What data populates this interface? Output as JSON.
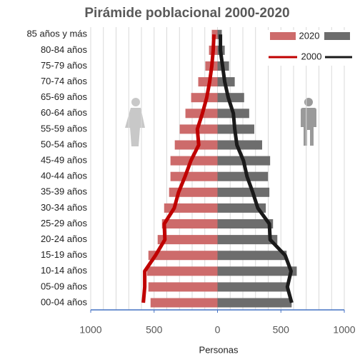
{
  "chart_data": {
    "type": "pyramid",
    "title": "Pirámide poblacional 2000-2020",
    "x_label": "Personas",
    "categories": [
      "00-04 años",
      "05-09 años",
      "10-14 años",
      "15-19 años",
      "20-24 años",
      "25-29 años",
      "30-34 años",
      "35-39 años",
      "40-44 años",
      "45-49 años",
      "50-54 años",
      "55-59 años",
      "60-64 años",
      "65-69 años",
      "70-74 años",
      "75-79 años",
      "80-84 años",
      "85 años y más"
    ],
    "series": [
      {
        "name": "2020",
        "kind": "bar",
        "color": "#cd6b6b",
        "values": [
          -528,
          -545,
          -556,
          -545,
          -472,
          -438,
          -421,
          -382,
          -371,
          -371,
          -337,
          -298,
          -253,
          -208,
          -152,
          -96,
          -67,
          -45
        ]
      },
      {
        "name": "2020",
        "kind": "bar",
        "color": "#6d6d6d",
        "values": [
          585,
          551,
          625,
          545,
          472,
          438,
          381,
          409,
          398,
          415,
          352,
          290,
          250,
          210,
          136,
          91,
          57,
          34
        ]
      },
      {
        "name": "2000",
        "kind": "line",
        "color": "#c00000",
        "values": [
          -585,
          -574,
          -574,
          -489,
          -415,
          -420,
          -341,
          -307,
          -256,
          -210,
          -148,
          -159,
          -119,
          -85,
          -62,
          -45,
          -34,
          -28
        ]
      },
      {
        "name": "2000",
        "kind": "line",
        "color": "#1a1a1a",
        "values": [
          585,
          551,
          580,
          534,
          415,
          409,
          318,
          278,
          233,
          205,
          153,
          136,
          125,
          85,
          57,
          40,
          23,
          23
        ]
      }
    ],
    "xlim": [
      -1000,
      1000
    ],
    "xticks": [
      {
        "value": -1000,
        "label": "1000"
      },
      {
        "value": -500,
        "label": "500"
      },
      0,
      500,
      1000
    ],
    "xgrid": [
      -1000,
      -900,
      -800,
      -700,
      -600,
      -500,
      -400,
      -300,
      -200,
      -100,
      0,
      100,
      200,
      300,
      400,
      500,
      600,
      700,
      800,
      900,
      1000
    ],
    "legend": "top-right"
  }
}
